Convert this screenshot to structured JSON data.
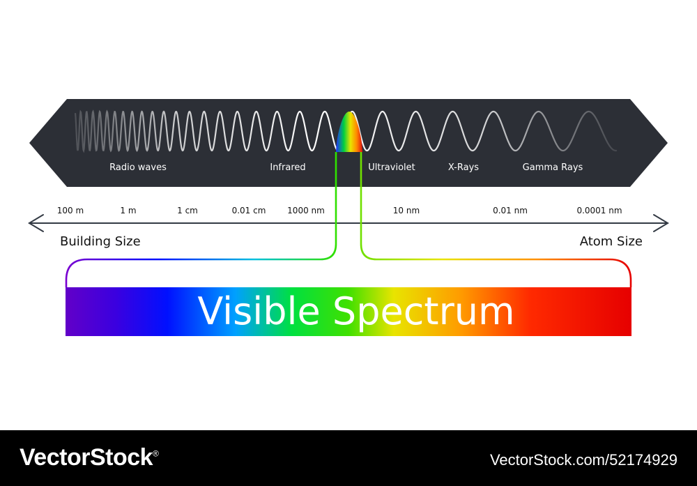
{
  "bands": [
    "Radio waves",
    "Infrared",
    "Ultraviolet",
    "X-Rays",
    "Gamma Rays"
  ],
  "scale": [
    "100 m",
    "1 m",
    "1 cm",
    "0.01 cm",
    "1000 nm",
    "10 nm",
    "0.01 nm",
    "0.0001 nm"
  ],
  "left_size": "Building Size",
  "right_size": "Atom Size",
  "title": "Visible Spectrum",
  "footer": {
    "brand": "VectorStock",
    "brand_mark": "®",
    "stock_id": "VectorStock.com/52174929"
  },
  "colors": {
    "band_bg": "#2c2f36",
    "spectrum": [
      "#6a00c8",
      "#0018ff",
      "#00aaff",
      "#00d820",
      "#e8e000",
      "#ff9a00",
      "#ff2000",
      "#e60000"
    ]
  }
}
